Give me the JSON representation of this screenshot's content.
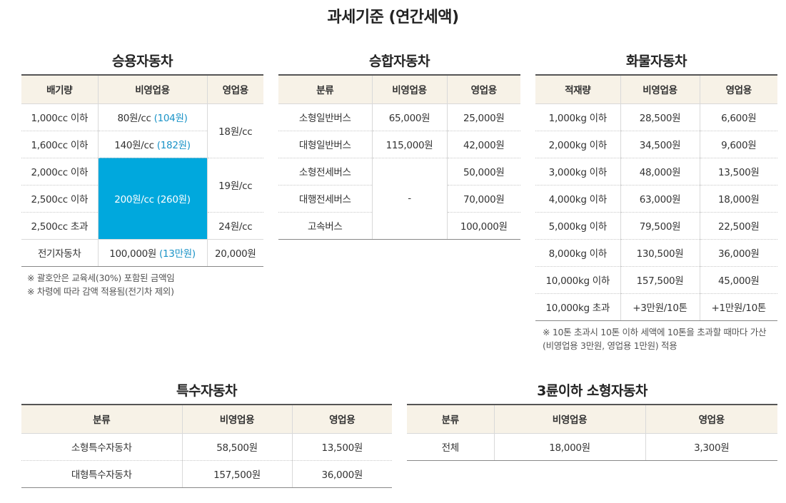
{
  "page_title": "과세기준 (연간세액)",
  "passenger": {
    "title": "승용자동차",
    "headers": [
      "배기량",
      "비영업용",
      "영업용"
    ],
    "rows": [
      {
        "disp": "1,000cc 이하",
        "noncomm": "80원/cc",
        "noncomm_sub": "(104원)"
      },
      {
        "disp": "1,600cc 이하",
        "noncomm": "140원/cc",
        "noncomm_sub": "(182원)"
      },
      {
        "disp": "2,000cc 이하"
      },
      {
        "disp": "2,500cc 이하"
      },
      {
        "disp": "2,500cc 초과"
      },
      {
        "disp": "전기자동차",
        "noncomm": "100,000원",
        "noncomm_sub": "(13만원)",
        "comm": "20,000원"
      }
    ],
    "merged_noncomm": "200원/cc",
    "merged_noncomm_sub": "(260원)",
    "comm_a": "18원/cc",
    "comm_b": "19원/cc",
    "comm_c": "24원/cc",
    "notes": [
      "※ 괄호안은 교육세(30%) 포함된 금액임",
      "※ 차령에 따라 감액 적용됨(전기차 제외)"
    ]
  },
  "bus": {
    "title": "승합자동차",
    "headers": [
      "분류",
      "비영업용",
      "영업용"
    ],
    "rows": [
      {
        "cat": "소형일반버스",
        "noncomm": "65,000원",
        "comm": "25,000원"
      },
      {
        "cat": "대형일반버스",
        "noncomm": "115,000원",
        "comm": "42,000원"
      },
      {
        "cat": "소형전세버스",
        "comm": "50,000원"
      },
      {
        "cat": "대행전세버스",
        "comm": "70,000원"
      },
      {
        "cat": "고속버스",
        "comm": "100,000원"
      }
    ],
    "merged_noncomm": "-"
  },
  "truck": {
    "title": "화물자동차",
    "headers": [
      "적재량",
      "비영업용",
      "영업용"
    ],
    "rows": [
      {
        "load": "1,000kg 이하",
        "noncomm": "28,500원",
        "comm": "6,600원"
      },
      {
        "load": "2,000kg 이하",
        "noncomm": "34,500원",
        "comm": "9,600원"
      },
      {
        "load": "3,000kg 이하",
        "noncomm": "48,000원",
        "comm": "13,500원"
      },
      {
        "load": "4,000kg 이하",
        "noncomm": "63,000원",
        "comm": "18,000원"
      },
      {
        "load": "5,000kg 이하",
        "noncomm": "79,500원",
        "comm": "22,500원"
      },
      {
        "load": "8,000kg 이하",
        "noncomm": "130,500원",
        "comm": "36,000원"
      },
      {
        "load": "10,000kg 이하",
        "noncomm": "157,500원",
        "comm": "45,000원"
      },
      {
        "load": "10,000kg 초과",
        "noncomm": "+3만원/10톤",
        "comm": "+1만원/10톤"
      }
    ],
    "note": "※ 10톤 초과시 10톤 이하 세액에 10톤을 초과할 때마다 가산(비영업용 3만원, 영업용 1만원) 적용"
  },
  "special": {
    "title": "특수자동차",
    "headers": [
      "분류",
      "비영업용",
      "영업용"
    ],
    "rows": [
      {
        "cat": "소형특수자동차",
        "noncomm": "58,500원",
        "comm": "13,500원"
      },
      {
        "cat": "대형특수자동차",
        "noncomm": "157,500원",
        "comm": "36,000원"
      }
    ]
  },
  "small": {
    "title": "3륜이하 소형자동차",
    "headers": [
      "분류",
      "비영업용",
      "영업용"
    ],
    "rows": [
      {
        "cat": "전체",
        "noncomm": "18,000원",
        "comm": "3,300원"
      }
    ]
  }
}
